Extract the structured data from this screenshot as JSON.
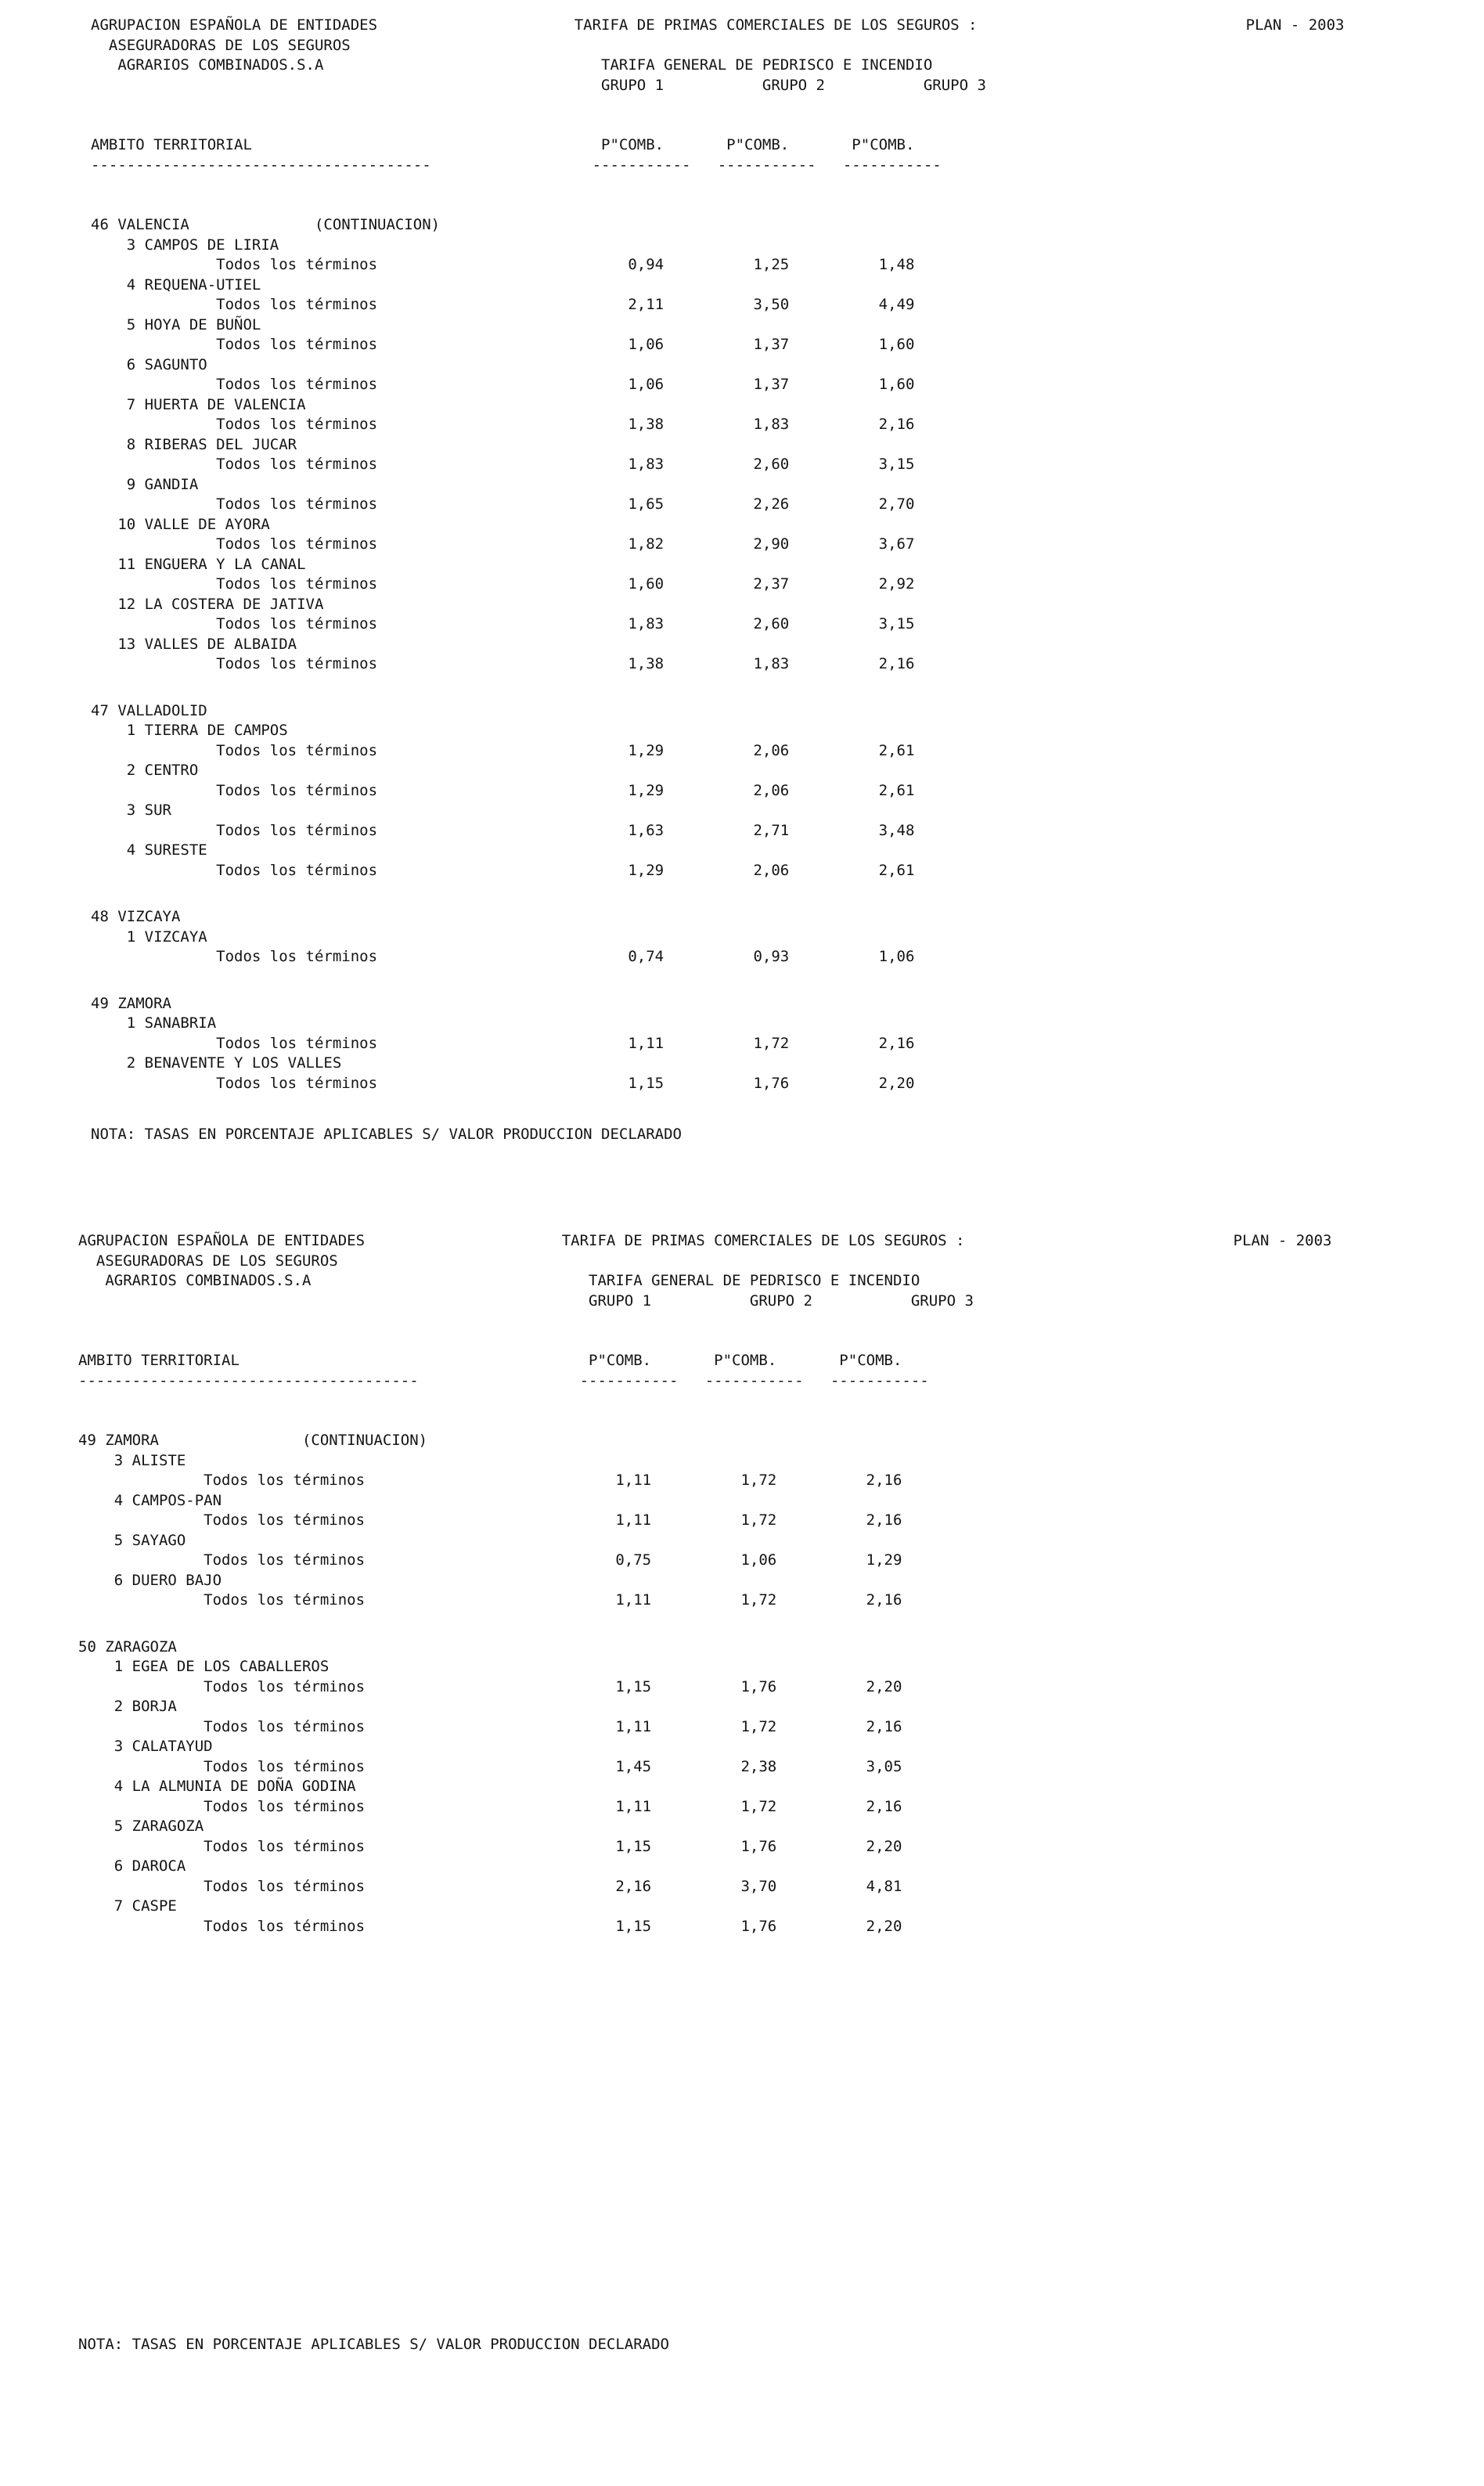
{
  "pages": [
    {
      "header": {
        "org_lines": [
          "AGRUPACION ESPAÑOLA DE ENTIDADES",
          "ASEGURADORAS DE LOS SEGUROS",
          "AGRARIOS COMBINADOS.S.A"
        ],
        "title": "TARIFA DE PRIMAS COMERCIALES DE LOS SEGUROS :",
        "plan": "PLAN - 2003",
        "subtitle": "TARIFA GENERAL DE PEDRISCO E INCENDIO",
        "groups": [
          "GRUPO 1",
          "GRUPO 2",
          "GRUPO 3"
        ]
      },
      "table": {
        "ambito_header": "AMBITO TERRITORIAL",
        "value_headers": [
          "P\"COMB.",
          "P\"COMB.",
          "P\"COMB."
        ],
        "continuation_label": "(CONTINUACION)",
        "sections": [
          {
            "num": "46",
            "name": "VALENCIA",
            "continuation": true,
            "zones": [
              {
                "num": "3",
                "name": "CAMPOS DE LIRIA",
                "terms": "Todos los términos",
                "values": [
                  "0,94",
                  "1,25",
                  "1,48"
                ]
              },
              {
                "num": "4",
                "name": "REQUENA-UTIEL",
                "terms": "Todos los términos",
                "values": [
                  "2,11",
                  "3,50",
                  "4,49"
                ]
              },
              {
                "num": "5",
                "name": "HOYA DE BUÑOL",
                "terms": "Todos los términos",
                "values": [
                  "1,06",
                  "1,37",
                  "1,60"
                ]
              },
              {
                "num": "6",
                "name": "SAGUNTO",
                "terms": "Todos los términos",
                "values": [
                  "1,06",
                  "1,37",
                  "1,60"
                ]
              },
              {
                "num": "7",
                "name": "HUERTA DE VALENCIA",
                "terms": "Todos los términos",
                "values": [
                  "1,38",
                  "1,83",
                  "2,16"
                ]
              },
              {
                "num": "8",
                "name": "RIBERAS DEL JUCAR",
                "terms": "Todos los términos",
                "values": [
                  "1,83",
                  "2,60",
                  "3,15"
                ]
              },
              {
                "num": "9",
                "name": "GANDIA",
                "terms": "Todos los términos",
                "values": [
                  "1,65",
                  "2,26",
                  "2,70"
                ]
              },
              {
                "num": "10",
                "name": "VALLE DE AYORA",
                "terms": "Todos los términos",
                "values": [
                  "1,82",
                  "2,90",
                  "3,67"
                ]
              },
              {
                "num": "11",
                "name": "ENGUERA Y LA CANAL",
                "terms": "Todos los términos",
                "values": [
                  "1,60",
                  "2,37",
                  "2,92"
                ]
              },
              {
                "num": "12",
                "name": "LA COSTERA DE JATIVA",
                "terms": "Todos los términos",
                "values": [
                  "1,83",
                  "2,60",
                  "3,15"
                ]
              },
              {
                "num": "13",
                "name": "VALLES DE ALBAIDA",
                "terms": "Todos los términos",
                "values": [
                  "1,38",
                  "1,83",
                  "2,16"
                ]
              }
            ]
          },
          {
            "num": "47",
            "name": "VALLADOLID",
            "continuation": false,
            "zones": [
              {
                "num": "1",
                "name": "TIERRA DE CAMPOS",
                "terms": "Todos los términos",
                "values": [
                  "1,29",
                  "2,06",
                  "2,61"
                ]
              },
              {
                "num": "2",
                "name": "CENTRO",
                "terms": "Todos los términos",
                "values": [
                  "1,29",
                  "2,06",
                  "2,61"
                ]
              },
              {
                "num": "3",
                "name": "SUR",
                "terms": "Todos los términos",
                "values": [
                  "1,63",
                  "2,71",
                  "3,48"
                ]
              },
              {
                "num": "4",
                "name": "SURESTE",
                "terms": "Todos los términos",
                "values": [
                  "1,29",
                  "2,06",
                  "2,61"
                ]
              }
            ]
          },
          {
            "num": "48",
            "name": "VIZCAYA",
            "continuation": false,
            "zones": [
              {
                "num": "1",
                "name": "VIZCAYA",
                "terms": "Todos los términos",
                "values": [
                  "0,74",
                  "0,93",
                  "1,06"
                ]
              }
            ]
          },
          {
            "num": "49",
            "name": "ZAMORA",
            "continuation": false,
            "zones": [
              {
                "num": "1",
                "name": "SANABRIA",
                "terms": "Todos los términos",
                "values": [
                  "1,11",
                  "1,72",
                  "2,16"
                ]
              },
              {
                "num": "2",
                "name": "BENAVENTE Y LOS VALLES",
                "terms": "Todos los términos",
                "values": [
                  "1,15",
                  "1,76",
                  "2,20"
                ]
              }
            ]
          }
        ]
      },
      "nota": "NOTA: TASAS EN PORCENTAJE APLICABLES S/ VALOR PRODUCCION DECLARADO"
    },
    {
      "header": {
        "org_lines": [
          "AGRUPACION ESPAÑOLA DE ENTIDADES",
          "ASEGURADORAS DE LOS SEGUROS",
          "AGRARIOS COMBINADOS.S.A"
        ],
        "title": "TARIFA DE PRIMAS COMERCIALES DE LOS SEGUROS :",
        "plan": "PLAN - 2003",
        "subtitle": "TARIFA GENERAL DE PEDRISCO E INCENDIO",
        "groups": [
          "GRUPO 1",
          "GRUPO 2",
          "GRUPO 3"
        ]
      },
      "table": {
        "ambito_header": "AMBITO TERRITORIAL",
        "value_headers": [
          "P\"COMB.",
          "P\"COMB.",
          "P\"COMB."
        ],
        "continuation_label": "(CONTINUACION)",
        "sections": [
          {
            "num": "49",
            "name": "ZAMORA",
            "continuation": true,
            "zones": [
              {
                "num": "3",
                "name": "ALISTE",
                "terms": "Todos los términos",
                "values": [
                  "1,11",
                  "1,72",
                  "2,16"
                ]
              },
              {
                "num": "4",
                "name": "CAMPOS-PAN",
                "terms": "Todos los términos",
                "values": [
                  "1,11",
                  "1,72",
                  "2,16"
                ]
              },
              {
                "num": "5",
                "name": "SAYAGO",
                "terms": "Todos los términos",
                "values": [
                  "0,75",
                  "1,06",
                  "1,29"
                ]
              },
              {
                "num": "6",
                "name": "DUERO BAJO",
                "terms": "Todos los términos",
                "values": [
                  "1,11",
                  "1,72",
                  "2,16"
                ]
              }
            ]
          },
          {
            "num": "50",
            "name": "ZARAGOZA",
            "continuation": false,
            "zones": [
              {
                "num": "1",
                "name": "EGEA DE LOS CABALLEROS",
                "terms": "Todos los términos",
                "values": [
                  "1,15",
                  "1,76",
                  "2,20"
                ]
              },
              {
                "num": "2",
                "name": "BORJA",
                "terms": "Todos los términos",
                "values": [
                  "1,11",
                  "1,72",
                  "2,16"
                ]
              },
              {
                "num": "3",
                "name": "CALATAYUD",
                "terms": "Todos los términos",
                "values": [
                  "1,45",
                  "2,38",
                  "3,05"
                ]
              },
              {
                "num": "4",
                "name": "LA ALMUNIA DE DOÑA GODINA",
                "terms": "Todos los términos",
                "values": [
                  "1,11",
                  "1,72",
                  "2,16"
                ]
              },
              {
                "num": "5",
                "name": "ZARAGOZA",
                "terms": "Todos los términos",
                "values": [
                  "1,15",
                  "1,76",
                  "2,20"
                ]
              },
              {
                "num": "6",
                "name": "DAROCA",
                "terms": "Todos los términos",
                "values": [
                  "2,16",
                  "3,70",
                  "4,81"
                ]
              },
              {
                "num": "7",
                "name": "CASPE",
                "terms": "Todos los términos",
                "values": [
                  "1,15",
                  "1,76",
                  "2,20"
                ]
              }
            ]
          }
        ]
      },
      "nota": "NOTA: TASAS EN PORCENTAJE APLICABLES S/ VALOR PRODUCCION DECLARADO"
    }
  ]
}
